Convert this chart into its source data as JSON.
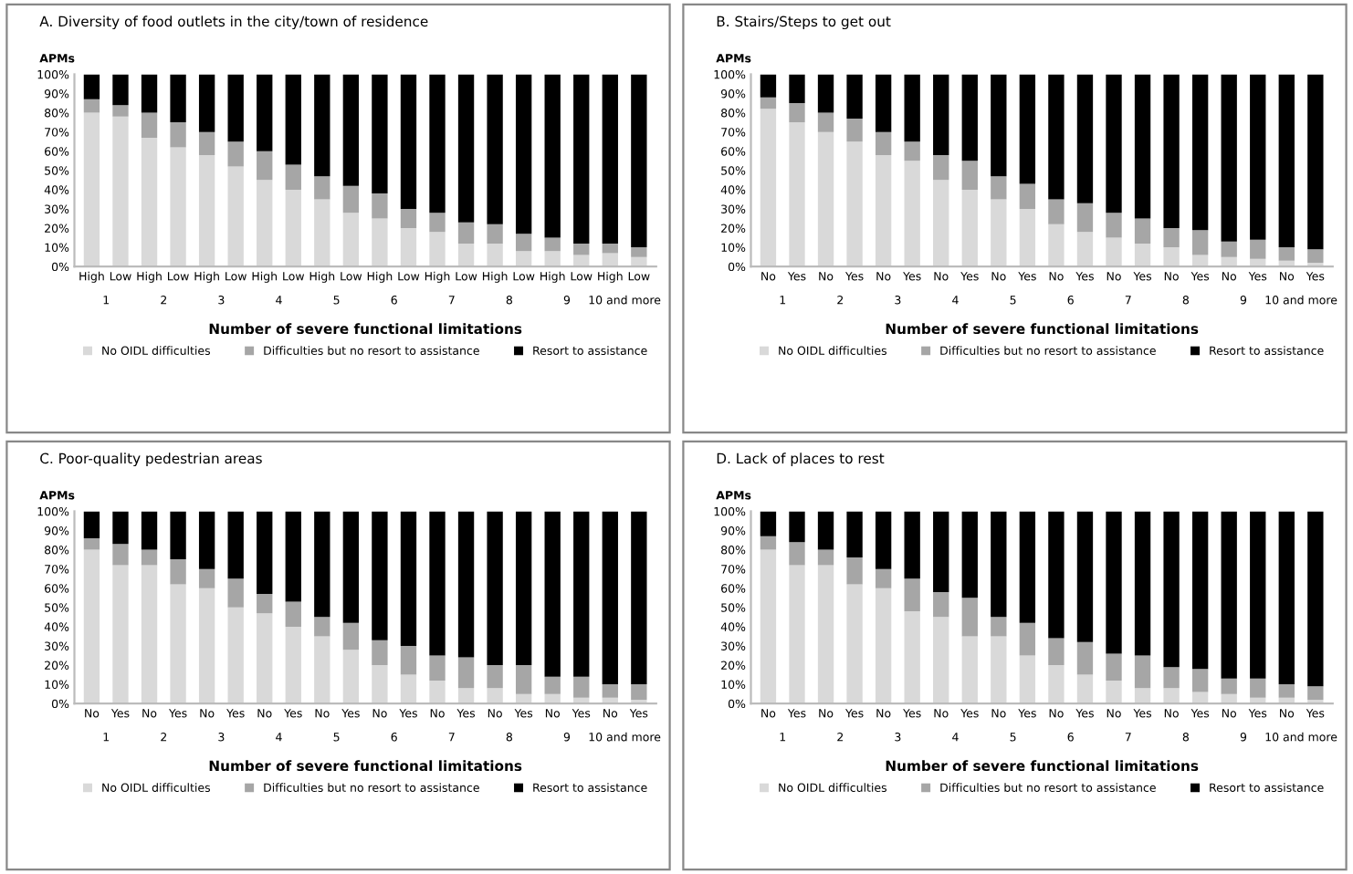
{
  "chart_data": [
    {
      "type": "bar",
      "stacked": true,
      "title": "A. Diversity of food outlets in the city/town of residence",
      "ylabel": "APMs",
      "xlabel": "Number of severe functional limitations",
      "legend": "bottom",
      "categories": [
        "High",
        "Low",
        "High",
        "Low",
        "High",
        "Low",
        "High",
        "Low",
        "High",
        "Low",
        "High",
        "Low",
        "High",
        "Low",
        "High",
        "Low",
        "High",
        "Low",
        "High",
        "Low"
      ],
      "ylim": [
        0,
        100
      ],
      "yticks": [
        {
          "value": 0,
          "label": "0%"
        },
        {
          "value": 10,
          "label": "10%"
        },
        {
          "value": 20,
          "label": "20%"
        },
        {
          "value": 30,
          "label": "30%"
        },
        {
          "value": 40,
          "label": "40%"
        },
        {
          "value": 50,
          "label": "50%"
        },
        {
          "value": 60,
          "label": "60%"
        },
        {
          "value": 70,
          "label": "70%"
        },
        {
          "value": 80,
          "label": "80%"
        },
        {
          "value": 90,
          "label": "90%"
        },
        {
          "value": 100,
          "label": "100%"
        }
      ],
      "annotations": [
        "1",
        "2",
        "3",
        "4",
        "5",
        "6",
        "7",
        "8",
        "9",
        "10 and more"
      ],
      "series": [
        {
          "name": "No OIDL difficulties",
          "color": "#d9d9d9",
          "values": [
            80,
            78,
            67,
            62,
            58,
            52,
            45,
            40,
            35,
            28,
            25,
            20,
            18,
            12,
            12,
            8,
            8,
            6,
            7,
            5
          ]
        },
        {
          "name": "Difficulties but no resort to assistance",
          "color": "#a6a6a6",
          "values": [
            7,
            6,
            13,
            13,
            12,
            13,
            15,
            13,
            12,
            14,
            13,
            10,
            10,
            11,
            10,
            9,
            7,
            6,
            5,
            5
          ]
        },
        {
          "name": "Resort to assistance",
          "color": "#000000",
          "values": [
            13,
            16,
            20,
            25,
            30,
            35,
            40,
            47,
            53,
            58,
            62,
            70,
            72,
            77,
            78,
            83,
            85,
            88,
            88,
            90
          ]
        }
      ]
    },
    {
      "type": "bar",
      "stacked": true,
      "title": "B. Stairs/Steps to get out",
      "ylabel": "APMs",
      "xlabel": "Number of severe functional limitations",
      "legend": "bottom",
      "categories": [
        "No",
        "Yes",
        "No",
        "Yes",
        "No",
        "Yes",
        "No",
        "Yes",
        "No",
        "Yes",
        "No",
        "Yes",
        "No",
        "Yes",
        "No",
        "Yes",
        "No",
        "Yes",
        "No",
        "Yes"
      ],
      "ylim": [
        0,
        100
      ],
      "yticks": [
        {
          "value": 0,
          "label": "0%"
        },
        {
          "value": 10,
          "label": "10%"
        },
        {
          "value": 20,
          "label": "20%"
        },
        {
          "value": 30,
          "label": "30%"
        },
        {
          "value": 40,
          "label": "40%"
        },
        {
          "value": 50,
          "label": "50%"
        },
        {
          "value": 60,
          "label": "60%"
        },
        {
          "value": 70,
          "label": "70%"
        },
        {
          "value": 80,
          "label": "80%"
        },
        {
          "value": 90,
          "label": "90%"
        },
        {
          "value": 100,
          "label": "100%"
        }
      ],
      "annotations": [
        "1",
        "2",
        "3",
        "4",
        "5",
        "6",
        "7",
        "8",
        "9",
        "10 and more"
      ],
      "series": [
        {
          "name": "No OIDL difficulties",
          "color": "#d9d9d9",
          "values": [
            82,
            75,
            70,
            65,
            58,
            55,
            45,
            40,
            35,
            30,
            22,
            18,
            15,
            12,
            10,
            6,
            5,
            4,
            3,
            2
          ]
        },
        {
          "name": "Difficulties but no resort to assistance",
          "color": "#a6a6a6",
          "values": [
            6,
            10,
            10,
            12,
            12,
            10,
            13,
            15,
            12,
            13,
            13,
            15,
            13,
            13,
            10,
            13,
            8,
            10,
            7,
            7
          ]
        },
        {
          "name": "Resort to assistance",
          "color": "#000000",
          "values": [
            12,
            15,
            20,
            23,
            30,
            35,
            42,
            45,
            53,
            57,
            65,
            67,
            72,
            75,
            80,
            81,
            87,
            86,
            90,
            91
          ]
        }
      ]
    },
    {
      "type": "bar",
      "stacked": true,
      "title": "C. Poor-quality pedestrian areas",
      "ylabel": "APMs",
      "xlabel": "Number of severe functional limitations",
      "legend": "bottom",
      "categories": [
        "No",
        "Yes",
        "No",
        "Yes",
        "No",
        "Yes",
        "No",
        "Yes",
        "No",
        "Yes",
        "No",
        "Yes",
        "No",
        "Yes",
        "No",
        "Yes",
        "No",
        "Yes",
        "No",
        "Yes"
      ],
      "ylim": [
        0,
        100
      ],
      "yticks": [
        {
          "value": 0,
          "label": "0%"
        },
        {
          "value": 10,
          "label": "10%"
        },
        {
          "value": 20,
          "label": "20%"
        },
        {
          "value": 30,
          "label": "30%"
        },
        {
          "value": 40,
          "label": "40%"
        },
        {
          "value": 50,
          "label": "50%"
        },
        {
          "value": 60,
          "label": "60%"
        },
        {
          "value": 70,
          "label": "70%"
        },
        {
          "value": 80,
          "label": "80%"
        },
        {
          "value": 90,
          "label": "90%"
        },
        {
          "value": 100,
          "label": "100%"
        }
      ],
      "annotations": [
        "1",
        "2",
        "3",
        "4",
        "5",
        "6",
        "7",
        "8",
        "9",
        "10 and more"
      ],
      "series": [
        {
          "name": "No OIDL difficulties",
          "color": "#d9d9d9",
          "values": [
            80,
            72,
            72,
            62,
            60,
            50,
            47,
            40,
            35,
            28,
            20,
            15,
            12,
            8,
            8,
            5,
            5,
            3,
            3,
            2
          ]
        },
        {
          "name": "Difficulties but no resort to assistance",
          "color": "#a6a6a6",
          "values": [
            6,
            11,
            8,
            13,
            10,
            15,
            10,
            13,
            10,
            14,
            13,
            15,
            13,
            16,
            12,
            15,
            9,
            11,
            7,
            8
          ]
        },
        {
          "name": "Resort to assistance",
          "color": "#000000",
          "values": [
            14,
            17,
            20,
            25,
            30,
            35,
            43,
            47,
            55,
            58,
            67,
            70,
            75,
            76,
            80,
            80,
            86,
            86,
            90,
            90
          ]
        }
      ]
    },
    {
      "type": "bar",
      "stacked": true,
      "title": "D. Lack of places to rest",
      "ylabel": "APMs",
      "xlabel": "Number of severe functional limitations",
      "legend": "bottom",
      "categories": [
        "No",
        "Yes",
        "No",
        "Yes",
        "No",
        "Yes",
        "No",
        "Yes",
        "No",
        "Yes",
        "No",
        "Yes",
        "No",
        "Yes",
        "No",
        "Yes",
        "No",
        "Yes",
        "No",
        "Yes"
      ],
      "ylim": [
        0,
        100
      ],
      "yticks": [
        {
          "value": 0,
          "label": "0%"
        },
        {
          "value": 10,
          "label": "10%"
        },
        {
          "value": 20,
          "label": "20%"
        },
        {
          "value": 30,
          "label": "30%"
        },
        {
          "value": 40,
          "label": "40%"
        },
        {
          "value": 50,
          "label": "50%"
        },
        {
          "value": 60,
          "label": "60%"
        },
        {
          "value": 70,
          "label": "70%"
        },
        {
          "value": 80,
          "label": "80%"
        },
        {
          "value": 90,
          "label": "90%"
        },
        {
          "value": 100,
          "label": "100%"
        }
      ],
      "annotations": [
        "1",
        "2",
        "3",
        "4",
        "5",
        "6",
        "7",
        "8",
        "9",
        "10 and more"
      ],
      "series": [
        {
          "name": "No OIDL difficulties",
          "color": "#d9d9d9",
          "values": [
            80,
            72,
            72,
            62,
            60,
            48,
            45,
            35,
            35,
            25,
            20,
            15,
            12,
            8,
            8,
            6,
            5,
            3,
            3,
            2
          ]
        },
        {
          "name": "Difficulties but no resort to assistance",
          "color": "#a6a6a6",
          "values": [
            7,
            12,
            8,
            14,
            10,
            17,
            13,
            20,
            10,
            17,
            14,
            17,
            14,
            17,
            11,
            12,
            8,
            10,
            7,
            7
          ]
        },
        {
          "name": "Resort to assistance",
          "color": "#000000",
          "values": [
            13,
            16,
            20,
            24,
            30,
            35,
            42,
            45,
            55,
            58,
            66,
            68,
            74,
            75,
            81,
            82,
            87,
            87,
            90,
            91
          ]
        }
      ]
    }
  ]
}
